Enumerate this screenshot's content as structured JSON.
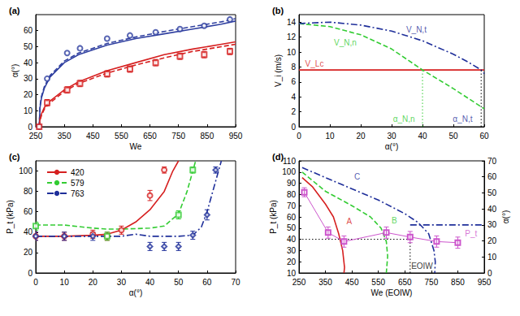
{
  "chart_data": [
    {
      "type": "line",
      "title": "(a)",
      "x_label": "We",
      "y_label": "α(°)",
      "xlim": [
        250,
        950
      ],
      "xticks": [
        250,
        350,
        450,
        550,
        650,
        750,
        850,
        950
      ],
      "ylim": [
        0,
        70
      ],
      "yticks": [
        0,
        10,
        20,
        30,
        40,
        50,
        60
      ],
      "grid": false,
      "series": [
        {
          "type": "line",
          "color": "#3040a0",
          "line_style": "solid",
          "x": [
            262,
            265,
            270,
            280,
            300,
            350,
            400,
            500,
            600,
            700,
            800,
            900,
            950
          ],
          "values": [
            0,
            12,
            18,
            24,
            31,
            40,
            45,
            51,
            55,
            58,
            61,
            64,
            66
          ]
        },
        {
          "type": "line",
          "color": "#3040a0",
          "line_style": "dashed",
          "x": [
            262,
            265,
            270,
            280,
            300,
            350,
            400,
            500,
            600,
            700,
            800,
            900,
            950
          ],
          "values": [
            0,
            13,
            19,
            25,
            32,
            41,
            46,
            52,
            56,
            59.5,
            62.5,
            65.5,
            67.5
          ]
        },
        {
          "type": "line",
          "color": "#d62020",
          "line_style": "solid",
          "x": [
            262,
            265,
            270,
            280,
            300,
            350,
            400,
            500,
            600,
            700,
            800,
            900,
            950
          ],
          "values": [
            0,
            5,
            8,
            12,
            16,
            23,
            28,
            35,
            40,
            45,
            48.5,
            51.5,
            53
          ]
        },
        {
          "type": "line",
          "color": "#d62020",
          "line_style": "dashed",
          "x": [
            262,
            265,
            270,
            280,
            300,
            350,
            400,
            500,
            600,
            700,
            800,
            900,
            950
          ],
          "values": [
            0,
            4,
            7,
            11,
            15,
            22,
            27,
            33.5,
            38.5,
            43,
            47,
            50,
            51.5
          ]
        },
        {
          "type": "scatter",
          "color": "#3040a0",
          "marker": "circle",
          "x": [
            262,
            290,
            360,
            405,
            500,
            580,
            670,
            755,
            840,
            930
          ],
          "values": [
            0,
            30,
            46,
            49,
            55,
            57,
            59,
            61,
            63,
            67
          ]
        },
        {
          "type": "scatter",
          "color": "#d62020",
          "marker": "square",
          "x": [
            262,
            290,
            360,
            405,
            500,
            580,
            670,
            755,
            840,
            930
          ],
          "values": [
            0,
            15,
            23,
            27,
            33,
            36,
            40,
            44,
            45,
            47
          ],
          "errors": [
            0,
            2,
            2,
            2,
            2,
            2,
            2,
            2,
            2,
            2
          ]
        }
      ]
    },
    {
      "type": "line",
      "title": "(b)",
      "x_label": "α(°)",
      "y_label": "V_i (m/s)",
      "xlim": [
        0,
        60
      ],
      "xticks": [
        0,
        10,
        20,
        30,
        40,
        50,
        60
      ],
      "ylim": [
        0,
        15
      ],
      "yticks": [
        0,
        2,
        4,
        6,
        8,
        10,
        12,
        14
      ],
      "grid": false,
      "series": [
        {
          "type": "line",
          "color": "#d62020",
          "line_style": "solid",
          "x": [
            0,
            60
          ],
          "values": [
            7.6,
            7.6
          ]
        },
        {
          "type": "line",
          "color": "#33cc33",
          "line_style": "dashed",
          "x": [
            0,
            10,
            20,
            30,
            40,
            50,
            60
          ],
          "values": [
            13.8,
            13.4,
            12.3,
            10.4,
            7.6,
            5.1,
            2.4
          ]
        },
        {
          "type": "line",
          "color": "#1f2f9a",
          "line_style": "dashdot",
          "x": [
            0,
            10,
            20,
            30,
            40,
            50,
            55,
            59,
            60
          ],
          "values": [
            13.8,
            14.0,
            13.6,
            12.8,
            11.5,
            9.7,
            8.6,
            7.6,
            7.1
          ]
        },
        {
          "type": "line",
          "color": "#33cc33",
          "line_style": "dotted",
          "x": [
            40,
            40
          ],
          "values": [
            0,
            7.6
          ]
        },
        {
          "type": "line",
          "color": "#000000",
          "line_style": "dotted",
          "x": [
            59,
            59
          ],
          "values": [
            0,
            7.6
          ]
        }
      ],
      "annotations": [
        {
          "text": "V_Lc",
          "x": 5,
          "y": 8.4,
          "color": "#d62020"
        },
        {
          "text": "V_N,n",
          "x": 15,
          "y": 11.2,
          "color": "#33cc33"
        },
        {
          "text": "V_N,t",
          "x": 38,
          "y": 13.0,
          "color": "#1f2f9a"
        },
        {
          "text": "α_N,n",
          "x": 34,
          "y": 1,
          "color": "#33cc33"
        },
        {
          "text": "α_N,t",
          "x": 53,
          "y": 1,
          "color": "#1f2f9a"
        }
      ]
    },
    {
      "type": "line",
      "title": "(c)",
      "x_label": "α(°)",
      "y_label": "P_t (kPa)",
      "xlim": [
        0,
        70
      ],
      "xticks": [
        0,
        10,
        20,
        30,
        40,
        50,
        60,
        70
      ],
      "ylim": [
        0,
        110
      ],
      "yticks": [
        0,
        20,
        40,
        60,
        80,
        100
      ],
      "grid": false,
      "legend": "upper left",
      "series": [
        {
          "name": "420",
          "type": "line",
          "color": "#d62020",
          "line_style": "solid",
          "x": [
            0,
            10,
            20,
            25,
            30,
            35,
            40,
            45,
            48,
            50
          ],
          "values": [
            36,
            36,
            37,
            38,
            42,
            50,
            62,
            80,
            100,
            110
          ]
        },
        {
          "name": "579",
          "type": "line",
          "color": "#33cc33",
          "line_style": "dashed",
          "x": [
            0,
            10,
            20,
            25,
            30,
            40,
            45,
            50,
            53,
            56
          ],
          "values": [
            47,
            47,
            44,
            43,
            43,
            44,
            46,
            58,
            80,
            110
          ]
        },
        {
          "name": "763",
          "type": "line",
          "color": "#1f2f9a",
          "line_style": "dashdot",
          "x": [
            0,
            10,
            20,
            30,
            35,
            40,
            50,
            55,
            58,
            60,
            63,
            65
          ],
          "values": [
            36,
            36,
            36,
            36,
            38,
            36,
            36,
            37,
            45,
            60,
            90,
            110
          ]
        },
        {
          "type": "scatter",
          "color": "#d62020",
          "marker": "circle",
          "x": [
            0,
            10,
            20,
            25,
            30,
            40,
            45
          ],
          "values": [
            36,
            36,
            38,
            36,
            42,
            76,
            101
          ],
          "errors": [
            4,
            4,
            4,
            4,
            4,
            5,
            3
          ]
        },
        {
          "type": "scatter",
          "color": "#33cc33",
          "marker": "square",
          "x": [
            0,
            25,
            50,
            55
          ],
          "values": [
            46,
            36,
            57,
            101
          ],
          "errors": [
            4,
            4,
            4,
            3
          ]
        },
        {
          "type": "scatter",
          "color": "#1f2f9a",
          "marker": "diamond",
          "x": [
            0,
            10,
            20,
            40,
            45,
            50,
            55,
            60,
            63
          ],
          "values": [
            36,
            36,
            36,
            26,
            26,
            26,
            37,
            57,
            101
          ],
          "errors": [
            4,
            4,
            4,
            4,
            4,
            4,
            4,
            5,
            3
          ]
        }
      ]
    },
    {
      "type": "line",
      "title": "(d)",
      "x_label": "We (EOIW)",
      "y_label": "P_t (kPa)",
      "y2_label": "α(°)",
      "xlim": [
        250,
        950
      ],
      "xticks": [
        250,
        350,
        450,
        550,
        650,
        750,
        850,
        950
      ],
      "ylim": [
        10,
        110
      ],
      "yticks": [
        10,
        20,
        30,
        40,
        50,
        60,
        70,
        80,
        90,
        100,
        110
      ],
      "y2lim": [
        0,
        70
      ],
      "y2ticks": [
        0,
        10,
        20,
        30,
        40,
        50,
        60,
        70
      ],
      "grid": false,
      "series": [
        {
          "type": "line",
          "axis": "y2",
          "color": "#d62020",
          "line_style": "solid",
          "x": [
            262,
            300,
            350,
            380,
            400,
            415,
            422,
            420
          ],
          "values": [
            59.5,
            54,
            43,
            35,
            24.5,
            14,
            3.5,
            0
          ]
        },
        {
          "type": "line",
          "axis": "y2",
          "color": "#33cc33",
          "line_style": "dashed",
          "x": [
            262,
            350,
            450,
            520,
            560,
            580,
            585,
            580
          ],
          "values": [
            63,
            51,
            42,
            35,
            28,
            19.6,
            10.5,
            0
          ]
        },
        {
          "type": "line",
          "axis": "y2",
          "color": "#1f2f9a",
          "line_style": "dashdot",
          "x": [
            262,
            400,
            550,
            650,
            700,
            740,
            760,
            765,
            763
          ],
          "values": [
            65.8,
            56,
            45.5,
            37,
            31.5,
            24.5,
            14,
            7,
            0
          ]
        },
        {
          "type": "line",
          "color": "#000000",
          "line_style": "dotted",
          "x": [
            250,
            670
          ],
          "values": [
            40,
            40
          ]
        },
        {
          "type": "line",
          "color": "#000000",
          "line_style": "dotted",
          "x": [
            670,
            670
          ],
          "values": [
            10,
            40
          ]
        },
        {
          "type": "line",
          "axis": "y2",
          "color": "#1f2f9a",
          "line_style": "dashdot",
          "x": [
            670,
            950
          ],
          "values": [
            30,
            30
          ]
        },
        {
          "type": "line",
          "color": "#cc55cc",
          "line_style": "solid",
          "marker": "square",
          "x": [
            270,
            360,
            420,
            580,
            670,
            770,
            850
          ],
          "values": [
            82,
            46,
            38,
            46,
            42,
            38,
            37
          ],
          "errors": [
            4,
            5,
            5,
            5,
            5,
            5,
            5
          ]
        }
      ],
      "annotations": [
        {
          "text": "A",
          "x": 440,
          "y": 56,
          "color": "#d62020"
        },
        {
          "text": "B",
          "x": 610,
          "y": 57,
          "color": "#33cc33"
        },
        {
          "text": "C",
          "x": 470,
          "y": 96,
          "color": "#1f2f9a"
        },
        {
          "text": "EOIW",
          "x": 715,
          "y": 16,
          "color": "#000000"
        },
        {
          "text": "P_t",
          "x": 900,
          "y": 45,
          "color": "#cc55cc"
        }
      ]
    }
  ]
}
